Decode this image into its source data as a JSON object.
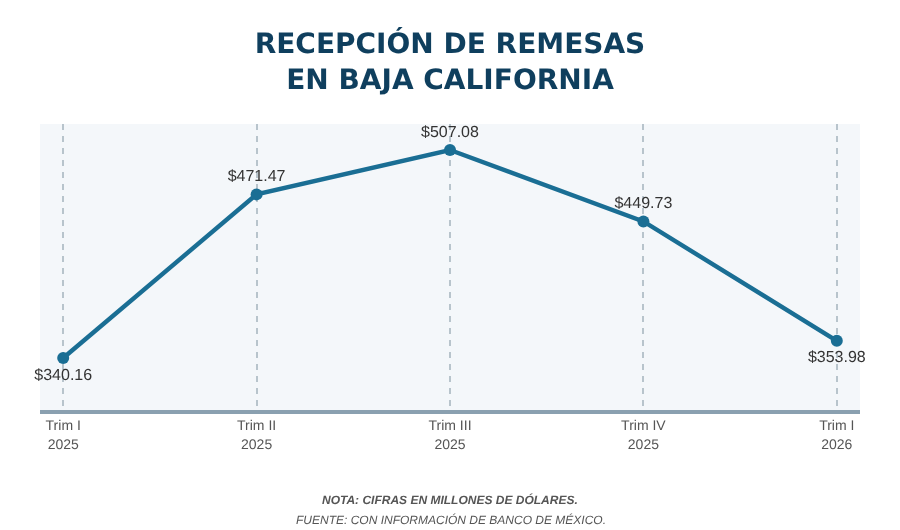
{
  "chart_data": {
    "type": "line",
    "title": "RECEPCIÓN DE REMESAS\nEN BAJA CALIFORNIA",
    "categories": [
      "Trim I\n2025",
      "Trim II\n2025",
      "Trim III\n2025",
      "Trim IV\n2025",
      "Trim I\n2026"
    ],
    "series": [
      {
        "color": "#1a6e94",
        "values": [
          340.16,
          471.47,
          507.08,
          449.73,
          353.98
        ],
        "value_labels": [
          "$340.16",
          "$471.47",
          "$507.08",
          "$449.73",
          "$353.98"
        ]
      }
    ],
    "marker": "circle",
    "line_style": "solid",
    "grid": "x",
    "legend": false,
    "tick_labels": "x",
    "annotations": [
      "NOTA: CIFRAS EN MILLONES DE DÓLARES.",
      "FUENTE: CON INFORMACIÓN DE BANCO DE MÉXICO."
    ]
  }
}
